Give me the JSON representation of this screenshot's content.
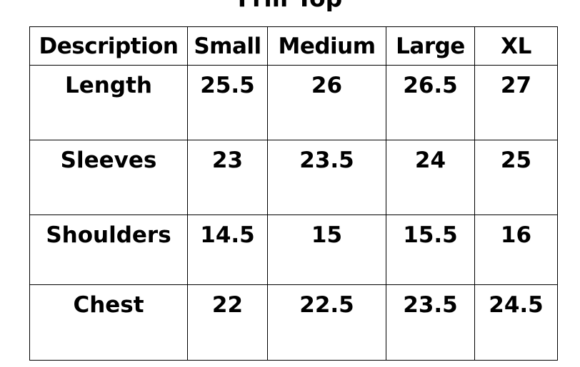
{
  "title": "Frill Top",
  "table": {
    "header": [
      "Description",
      "Small",
      "Medium",
      "Large",
      "XL"
    ],
    "rows": [
      [
        "Length",
        "25.5",
        "26",
        "26.5",
        "27"
      ],
      [
        "Sleeves",
        "23",
        "23.5",
        "24",
        "25"
      ],
      [
        "Shoulders",
        "14.5",
        "15",
        "15.5",
        "16"
      ],
      [
        "Chest",
        "22",
        "22.5",
        "23.5",
        "24.5"
      ]
    ]
  }
}
